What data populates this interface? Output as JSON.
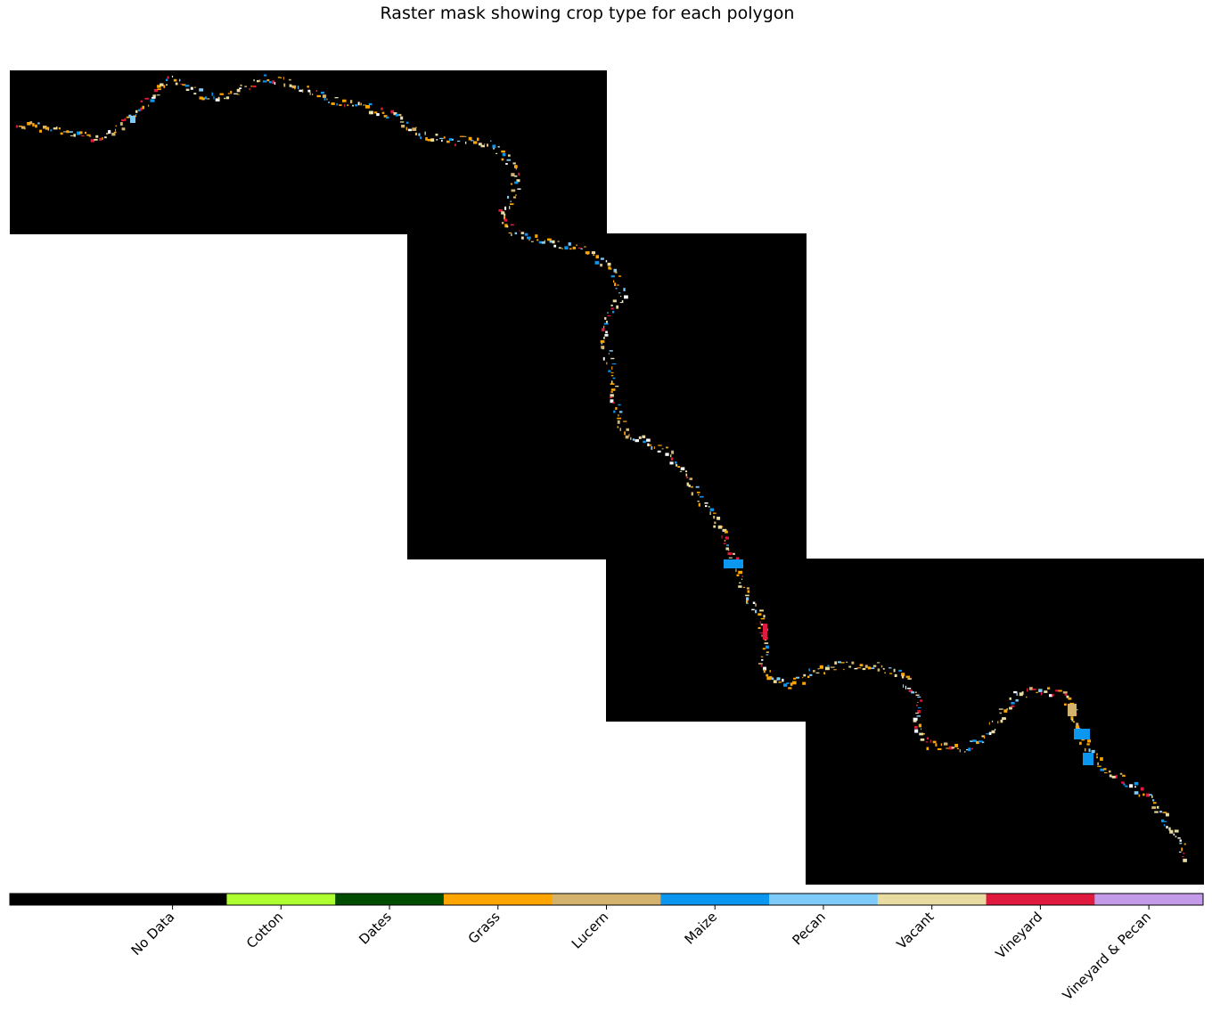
{
  "chart_data": {
    "type": "heatmap",
    "title": "Raster mask showing crop type for each polygon",
    "colorbar": {
      "orientation": "horizontal",
      "classes": [
        {
          "label": "No Data",
          "color": "#000000"
        },
        {
          "label": "Cotton",
          "color": "#adff2f"
        },
        {
          "label": "Dates",
          "color": "#004d00"
        },
        {
          "label": "Grass",
          "color": "#ffa500"
        },
        {
          "label": "Lucern",
          "color": "#d2b26c"
        },
        {
          "label": "Maize",
          "color": "#0b96f0"
        },
        {
          "label": "Pecan",
          "color": "#7ecbfa"
        },
        {
          "label": "Vacant",
          "color": "#e8dca2"
        },
        {
          "label": "Vineyard",
          "color": "#e01a3e"
        },
        {
          "label": "Vineyard & Pecan",
          "color": "#c39be8"
        }
      ]
    }
  }
}
